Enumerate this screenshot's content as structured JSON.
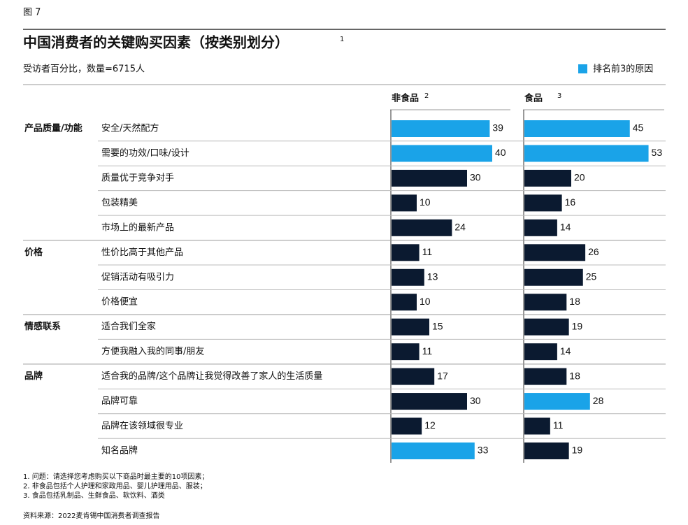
{
  "figure_label": "图 7",
  "title": "中国消费者的关键购买因素（按类别划分）",
  "title_note": "1",
  "subtitle": "受访者百分比，数量=6715人",
  "footnotes": [
    "1. 问题：请选择您考虑购买以下商品时最主要的10项因素；",
    "2. 非食品包括个人护理和家政用品、婴儿护理用品、服装；",
    "3. 食品包括乳制品、生鲜食品、软饮料、酒类"
  ],
  "source": "资料来源：2022麦肯锡中国消费者调查报告",
  "chart_data": {
    "type": "bar",
    "orientation": "horizontal",
    "legend": {
      "label": "排名前3的原因",
      "color": "#1aa3e8"
    },
    "groups": [
      {
        "name": "产品质量/功能",
        "categories": [
          "安全/天然配方",
          "需要的功效/口味/设计",
          "质量优于竞争对手",
          "包装精美",
          "市场上的最新产品"
        ]
      },
      {
        "name": "价格",
        "categories": [
          "性价比高于其他产品",
          "促销活动有吸引力",
          "价格便宜"
        ]
      },
      {
        "name": "情感联系",
        "categories": [
          "适合我们全家",
          "方便我融入我的同事/朋友"
        ]
      },
      {
        "name": "品牌",
        "categories": [
          "适合我的品牌/这个品牌让我觉得改善了家人的生活质量",
          "品牌可靠",
          "品牌在该领域很专业",
          "知名品牌"
        ]
      }
    ],
    "series": [
      {
        "name": "非食品",
        "note": "2",
        "color": "#0b1a30",
        "values": [
          39,
          40,
          30,
          10,
          24,
          11,
          13,
          10,
          15,
          11,
          17,
          30,
          12,
          33
        ],
        "highlight": [
          true,
          true,
          false,
          false,
          false,
          false,
          false,
          false,
          false,
          false,
          false,
          false,
          false,
          true
        ]
      },
      {
        "name": "食品",
        "note": "3",
        "color": "#0b1a30",
        "values": [
          45,
          53,
          20,
          16,
          14,
          26,
          25,
          18,
          19,
          14,
          18,
          28,
          11,
          19
        ],
        "highlight": [
          true,
          true,
          false,
          false,
          false,
          false,
          false,
          false,
          false,
          false,
          false,
          true,
          false,
          false
        ]
      }
    ]
  }
}
